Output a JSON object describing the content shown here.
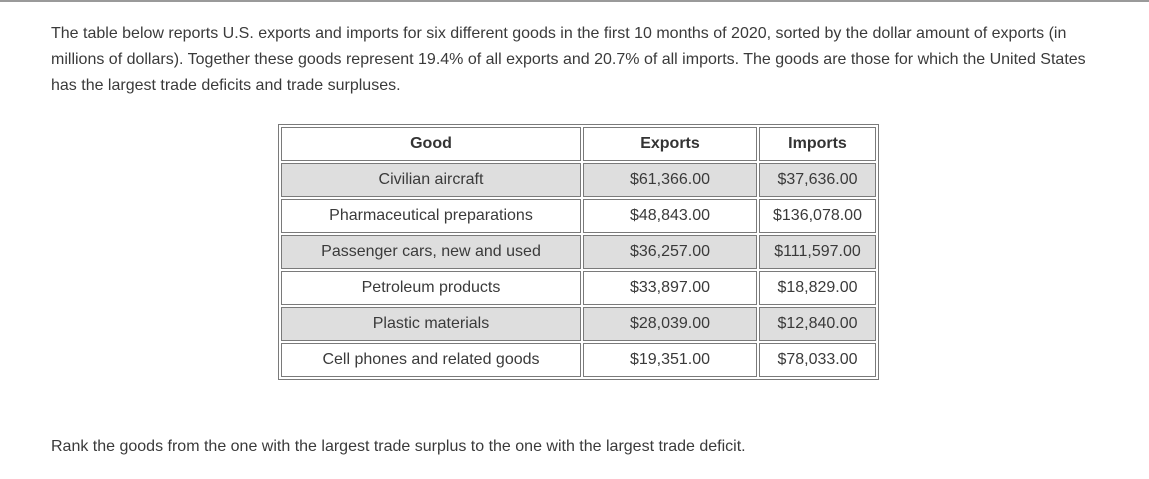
{
  "intro_text": "The table below reports U.S. exports and imports for six different goods in the first 10 months of 2020, sorted by the dollar amount of exports (in millions of dollars). Together these goods represent 19.4% of all exports and 20.7% of all imports. The goods are those for which the United States has the largest trade deficits and trade surpluses.",
  "table": {
    "headers": [
      "Good",
      "Exports",
      "Imports"
    ],
    "rows": [
      {
        "good": "Civilian aircraft",
        "exports": "$61,366.00",
        "imports": "$37,636.00"
      },
      {
        "good": "Pharmaceutical preparations",
        "exports": "$48,843.00",
        "imports": "$136,078.00"
      },
      {
        "good": "Passenger cars, new and used",
        "exports": "$36,257.00",
        "imports": "$111,597.00"
      },
      {
        "good": "Petroleum products",
        "exports": "$33,897.00",
        "imports": "$18,829.00"
      },
      {
        "good": "Plastic materials",
        "exports": "$28,039.00",
        "imports": "$12,840.00"
      },
      {
        "good": "Cell phones and related goods",
        "exports": "$19,351.00",
        "imports": "$78,033.00"
      }
    ]
  },
  "question_text": "Rank the goods from the one with the largest trade surplus to the one with the largest trade deficit."
}
